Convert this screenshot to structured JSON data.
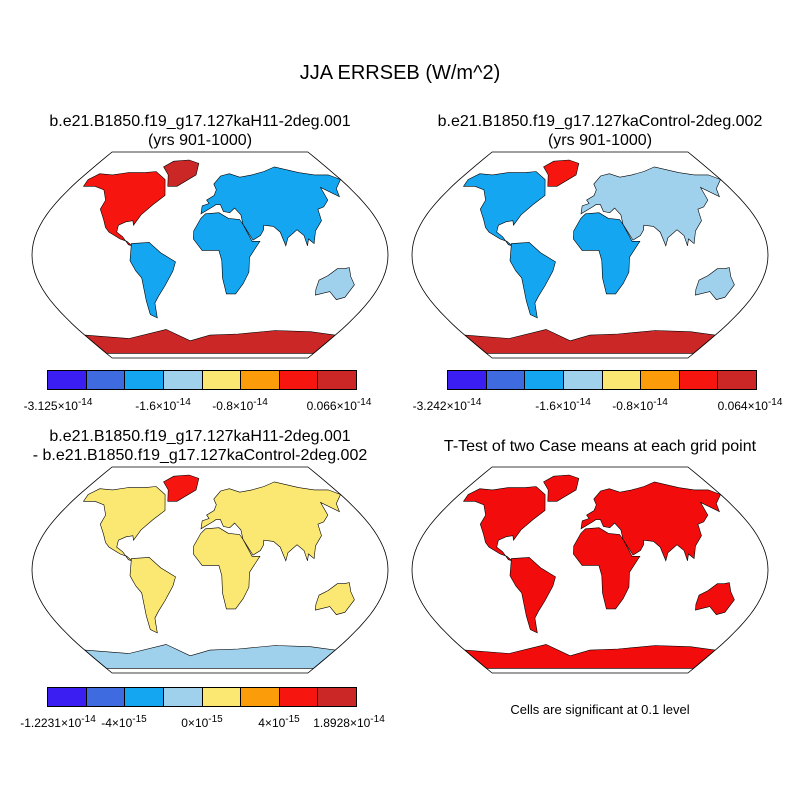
{
  "title": "JJA ERRSEB (W/m^2)",
  "panels": [
    {
      "id": "p1",
      "title_line1": "b.e21.B1850.f19_g17.127kaH11-2deg.001",
      "title_line2": "(yrs 901-1000)"
    },
    {
      "id": "p2",
      "title_line1": "b.e21.B1850.f19_g17.127kaControl-2deg.002",
      "title_line2": "(yrs 901-1000)"
    },
    {
      "id": "p3",
      "title_line1": "b.e21.B1850.f19_g17.127kaH11-2deg.001",
      "title_line2": "- b.e21.B1850.f19_g17.127kaControl-2deg.002"
    },
    {
      "id": "p4",
      "title_line1": "T-Test of two Case means at each grid point",
      "title_line2": ""
    }
  ],
  "colors": [
    "#3b1ff2",
    "#3f6be0",
    "#14a6f0",
    "#9fd0ec",
    "#fbe873",
    "#fb9d0a",
    "#f7160f",
    "#cc2727"
  ],
  "colorbars": {
    "cb1": {
      "labels": [
        "-3.125×10",
        "-1.6×10",
        "-0.8×10",
        "0.066×10"
      ],
      "exp": "-14"
    },
    "cb2": {
      "labels": [
        "-3.242×10",
        "-1.6×10",
        "-0.8×10",
        "0.064×10"
      ],
      "exp": "-14"
    },
    "cb3": {
      "labels": [
        "-1.2231×10",
        "-4×10",
        "0×10",
        "4×10",
        "1.8928×10"
      ],
      "exps": [
        "-14",
        "-15",
        "-15",
        "-15",
        "-14"
      ]
    }
  },
  "significance_note": "Cells are significant at 0.1 level"
}
